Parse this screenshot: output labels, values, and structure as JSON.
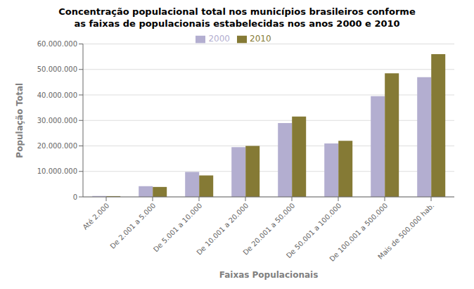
{
  "chart_data": {
    "type": "bar",
    "title": "Concentração populacional total nos municípios brasileiros conforme\nas faixas de populacionais estabelecidas nos anos 2000 e 2010",
    "xlabel": "Faixas Populacionais",
    "ylabel": "População Total",
    "categories": [
      "Até 2.000",
      "De 2.001 a 5.000",
      "De 5.001 a 10.000",
      "De 10.001 a 20.000",
      "De 20.001 a 50.000",
      "De 50.001 a 100.000",
      "De 100.001 a 500.000",
      "Mais de 500.000 hab."
    ],
    "series": [
      {
        "name": "2000",
        "color": "#b3aed0",
        "values": [
          350000,
          4200000,
          9800000,
          19500000,
          29000000,
          21000000,
          39500000,
          47000000
        ]
      },
      {
        "name": "2010",
        "color": "#857a35",
        "values": [
          300000,
          3900000,
          8400000,
          20000000,
          31500000,
          22000000,
          48500000,
          56000000
        ]
      }
    ],
    "ylim": [
      0,
      60000000
    ],
    "yticks": [
      0,
      {
        "value": 10000000,
        "label": "10.000.000"
      },
      {
        "value": 20000000,
        "label": "20.000.000"
      },
      {
        "value": 30000000,
        "label": "30.000.000"
      },
      {
        "value": 40000000,
        "label": "40.000.000"
      },
      {
        "value": 50000000,
        "label": "50.000.000"
      },
      {
        "value": 60000000,
        "label": "60.000.000"
      }
    ],
    "grid": true,
    "legend": "top"
  }
}
